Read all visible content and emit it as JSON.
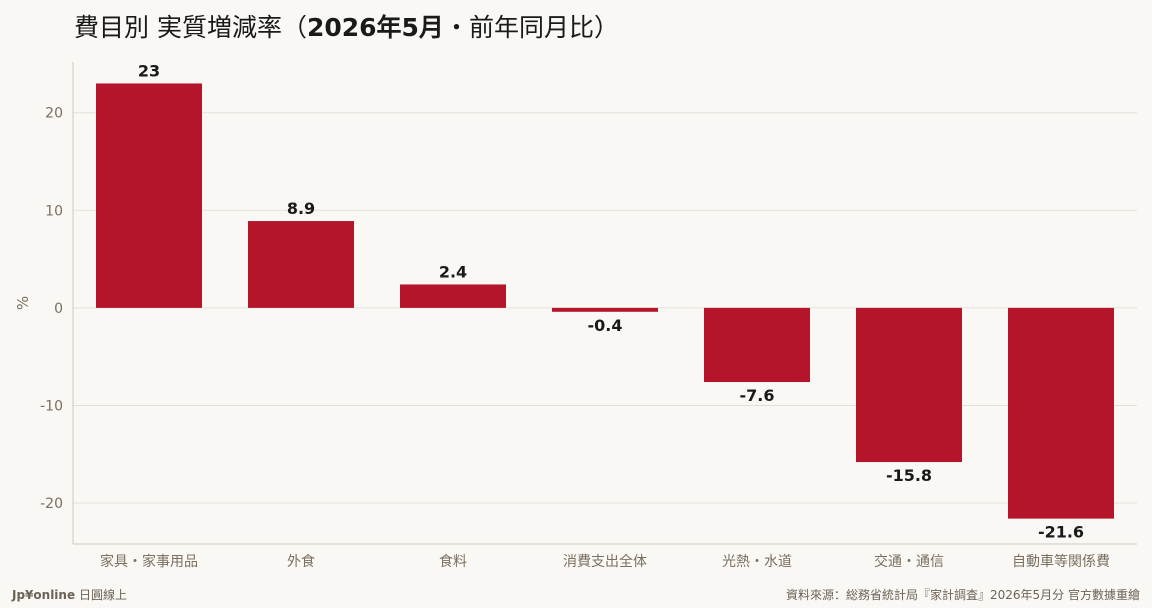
{
  "header": {
    "title_prefix": "費目別 実質増減率（",
    "title_period": "2026年5月",
    "title_suffix": "・前年同月比）"
  },
  "footer": {
    "brand": "Jp¥online",
    "brand_sub": "日圓線上",
    "source": "資料來源：総務省統計局『家計調査』2026年5月分 官方數據重繪"
  },
  "colors": {
    "bar": "#b5152b",
    "grid": "#e3dfd8",
    "axis_text": "#7a6f60",
    "label_text": "#1a1a1a"
  },
  "chart_data": {
    "type": "bar",
    "categories": [
      "家具・家事用品",
      "外食",
      "食料",
      "消費支出全体",
      "光熱・水道",
      "交通・通信",
      "自動車等関係費"
    ],
    "values": [
      23,
      8.9,
      2.4,
      -0.4,
      -7.6,
      -15.8,
      -21.6
    ],
    "data_labels": [
      "23",
      "8.9",
      "2.4",
      "-0.4",
      "-7.6",
      "-15.8",
      "-21.6"
    ],
    "ylabel": "%",
    "ylim": [
      -24.2,
      25.2
    ],
    "yticks": [
      20,
      10,
      0,
      -10,
      -20
    ],
    "grid": true,
    "legend": "none"
  }
}
